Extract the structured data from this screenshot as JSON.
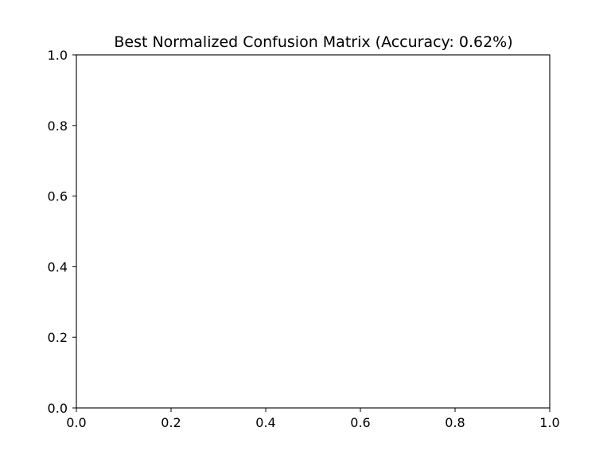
{
  "chart_data": {
    "type": "heatmap",
    "title": "Best Normalized Confusion Matrix (Accuracy: 0.62%)",
    "xlabel": "",
    "ylabel": "",
    "xlim": [
      0.0,
      1.0
    ],
    "ylim": [
      0.0,
      1.0
    ],
    "x_ticks": [
      "0.0",
      "0.2",
      "0.4",
      "0.6",
      "0.8",
      "1.0"
    ],
    "y_ticks": [
      "0.0",
      "0.2",
      "0.4",
      "0.6",
      "0.8",
      "1.0"
    ],
    "values": [],
    "grid": false,
    "colors": {
      "axes": "#000000",
      "background": "#ffffff"
    }
  }
}
